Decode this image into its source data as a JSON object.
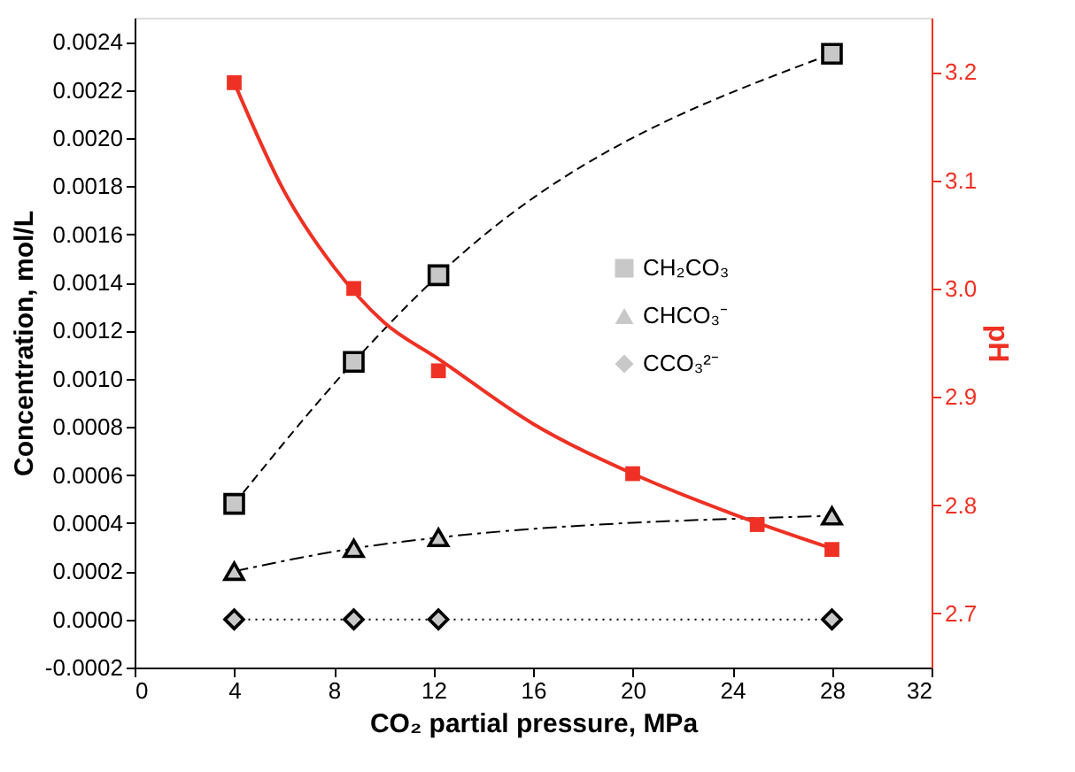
{
  "chart_data": {
    "type": "line",
    "xlabel": "CO₂ partial pressure, MPa",
    "ylabel": "Concentration, mol/L",
    "y2label": "pH",
    "xlim": [
      0,
      32
    ],
    "xticks": [
      0,
      4,
      8,
      12,
      16,
      20,
      24,
      28,
      32
    ],
    "ylim": [
      -0.0002,
      0.0025
    ],
    "yticks": [
      {
        "value": -0.0002,
        "label": "-0.0002"
      },
      {
        "value": 0,
        "label": "0.0000"
      },
      {
        "value": 0.0002,
        "label": "0.0002"
      },
      {
        "value": 0.0004,
        "label": "0.0004"
      },
      {
        "value": 0.0006,
        "label": "0.0006"
      },
      {
        "value": 0.0008,
        "label": "0.0008"
      },
      {
        "value": 0.001,
        "label": "0.0010"
      },
      {
        "value": 0.0012,
        "label": "0.0012"
      },
      {
        "value": 0.0014,
        "label": "0.0014"
      },
      {
        "value": 0.0016,
        "label": "0.0016"
      },
      {
        "value": 0.0018,
        "label": "0.0018"
      },
      {
        "value": 0.002,
        "label": "0.0020"
      },
      {
        "value": 0.0022,
        "label": "0.0022"
      },
      {
        "value": 0.0024,
        "label": "0.0024"
      }
    ],
    "y2lim": [
      2.65,
      3.25
    ],
    "y2ticks": [
      {
        "value": 2.7,
        "label": "2.7"
      },
      {
        "value": 2.8,
        "label": "2.8"
      },
      {
        "value": 2.9,
        "label": "2.9"
      },
      {
        "value": 3.0,
        "label": "3.0"
      },
      {
        "value": 3.1,
        "label": "3.1"
      },
      {
        "value": 3.2,
        "label": "3.2"
      }
    ],
    "grid": false,
    "legend": "right",
    "series": [
      {
        "name": "CH₂CO₃",
        "type": "line",
        "color": "#000000",
        "marker": "square",
        "line_style": "dashed",
        "x": [
          4,
          8.8,
          12.2,
          28
        ],
        "values": [
          0.00048,
          0.00107,
          0.00143,
          0.00235
        ]
      },
      {
        "name": "CHCO₃⁻",
        "type": "line",
        "color": "#000000",
        "marker": "triangle",
        "line_style": "dashdot",
        "x": [
          4,
          8.8,
          12.2,
          28
        ],
        "values": [
          0.0002,
          0.000295,
          0.00034,
          0.00043
        ]
      },
      {
        "name": "CCO₃²⁻",
        "type": "line",
        "color": "#000000",
        "marker": "diamond",
        "line_style": "dotted",
        "x": [
          4,
          8.8,
          12.2,
          28
        ],
        "values": [
          0,
          0,
          0,
          0
        ]
      },
      {
        "type": "scatter",
        "axis": "y2",
        "color": "#ee3124",
        "marker": "square",
        "x": [
          4,
          8.8,
          12.2,
          20,
          25,
          28
        ],
        "values": [
          3.19,
          3.0,
          2.924,
          2.829,
          2.782,
          2.759
        ]
      },
      {
        "type": "line",
        "axis": "y2",
        "color": "#ee3124",
        "marker": "none",
        "line_style": "solid",
        "x": [
          4,
          6,
          8,
          10,
          12.2,
          16,
          20,
          24,
          28
        ],
        "values": [
          3.19,
          3.09,
          3.02,
          2.969,
          2.935,
          2.875,
          2.829,
          2.792,
          2.76
        ]
      }
    ]
  }
}
